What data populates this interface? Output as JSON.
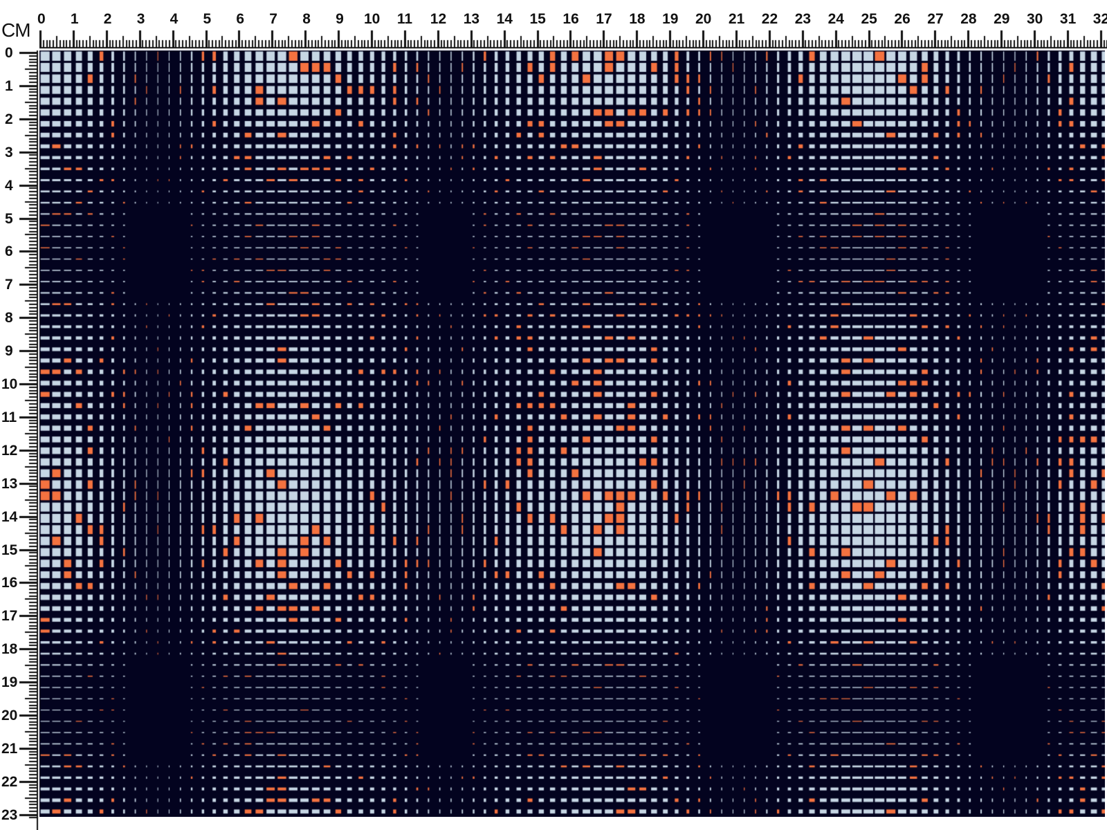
{
  "ruler": {
    "unit": "CM",
    "top_labels": [
      "0",
      "1",
      "2",
      "3",
      "4",
      "5",
      "6",
      "7",
      "8",
      "9",
      "10",
      "11",
      "12",
      "13",
      "14",
      "15",
      "16",
      "17",
      "18",
      "19",
      "20",
      "21",
      "22",
      "23",
      "24",
      "25",
      "26",
      "27",
      "28",
      "29",
      "30",
      "31",
      "32"
    ],
    "left_labels": [
      "0",
      "1",
      "2",
      "3",
      "4",
      "5",
      "6",
      "7",
      "8",
      "9",
      "10",
      "11",
      "12",
      "13",
      "14",
      "15",
      "16",
      "17",
      "18",
      "19",
      "20",
      "21",
      "22",
      "23"
    ]
  },
  "pattern": {
    "type": "plaid fabric swatch",
    "colors": {
      "background": "#03031f",
      "light": "#c6d6e4",
      "accent": "#f47240"
    }
  }
}
